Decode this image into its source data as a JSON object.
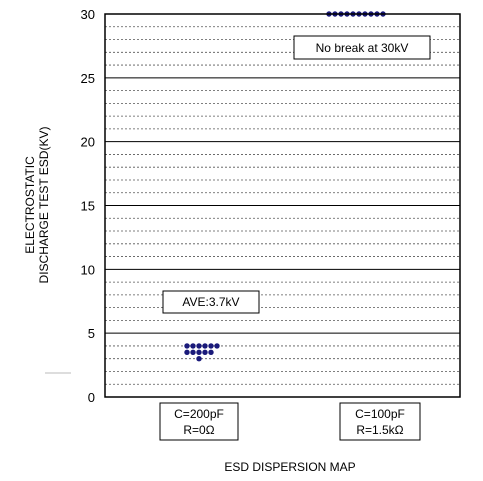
{
  "chart_data": {
    "type": "scatter",
    "title": "",
    "xlabel": "ESD DISPERSION MAP",
    "ylabel": [
      "ELECTROSTATIC",
      "DISCHARGE TEST ESD(KV)"
    ],
    "ylim": [
      0,
      30
    ],
    "yticks": [
      0,
      5,
      10,
      15,
      20,
      25,
      30
    ],
    "grid": "dotted horizontal every 1kV",
    "marker_color": "#1a1a7a",
    "categories": [
      {
        "lines": [
          "C=200pF",
          "R=0Ω"
        ]
      },
      {
        "lines": [
          "C=100pF",
          "R=1.5kΩ"
        ]
      }
    ],
    "series": [
      {
        "category": 0,
        "points": [
          {
            "x": 0.0,
            "y": 3.0
          },
          {
            "x": -0.3,
            "y": 3.5
          },
          {
            "x": -0.15,
            "y": 3.5
          },
          {
            "x": 0.0,
            "y": 3.5
          },
          {
            "x": 0.15,
            "y": 3.5
          },
          {
            "x": 0.3,
            "y": 3.5
          },
          {
            "x": -0.3,
            "y": 4.0
          },
          {
            "x": -0.15,
            "y": 4.0
          },
          {
            "x": 0.0,
            "y": 4.0
          },
          {
            "x": 0.15,
            "y": 4.0
          },
          {
            "x": 0.3,
            "y": 4.0
          },
          {
            "x": 0.45,
            "y": 4.0
          }
        ]
      },
      {
        "category": 1,
        "points": [
          {
            "x": -0.6,
            "y": 30
          },
          {
            "x": -0.45,
            "y": 30
          },
          {
            "x": -0.3,
            "y": 30
          },
          {
            "x": -0.15,
            "y": 30
          },
          {
            "x": 0.0,
            "y": 30
          },
          {
            "x": 0.15,
            "y": 30
          },
          {
            "x": 0.3,
            "y": 30
          },
          {
            "x": 0.45,
            "y": 30
          },
          {
            "x": 0.6,
            "y": 30
          },
          {
            "x": 0.75,
            "y": 30
          }
        ]
      }
    ],
    "annotations": [
      {
        "text": "AVE:3.7kV"
      },
      {
        "text": "No break at 30kV"
      }
    ]
  }
}
